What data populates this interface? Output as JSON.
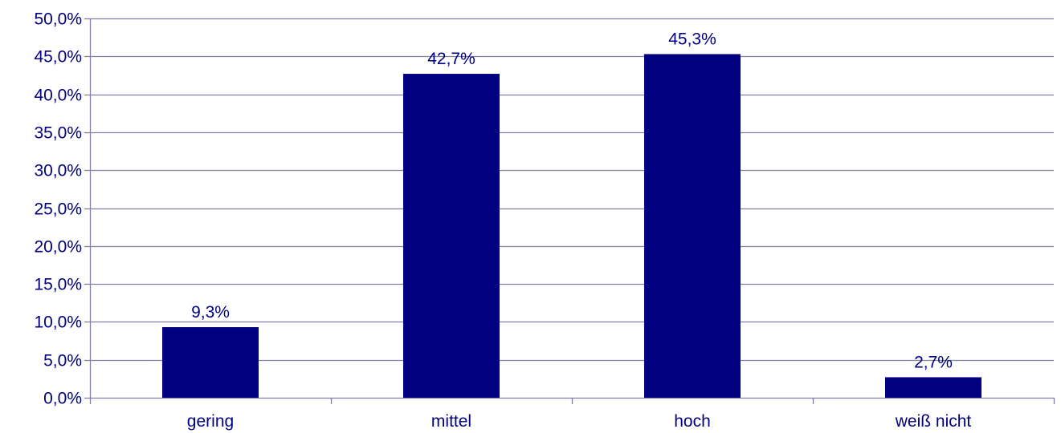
{
  "chart_data": {
    "type": "bar",
    "categories": [
      "gering",
      "mittel",
      "hoch",
      "weiß nicht"
    ],
    "values": [
      9.3,
      42.7,
      45.3,
      2.7
    ],
    "data_labels": [
      "9,3%",
      "42,7%",
      "45,3%",
      "2,7%"
    ],
    "title": "",
    "xlabel": "",
    "ylabel": "",
    "ylim": [
      0,
      50
    ],
    "yticks": [
      0,
      5,
      10,
      15,
      20,
      25,
      30,
      35,
      40,
      45,
      50
    ],
    "ytick_labels": [
      "0,0%",
      "5,0%",
      "10,0%",
      "15,0%",
      "20,0%",
      "25,0%",
      "30,0%",
      "35,0%",
      "40,0%",
      "45,0%",
      "50,0%"
    ],
    "grid": true,
    "legend": "none",
    "bar_color": "#000080",
    "grid_color": "#8080a0",
    "text_color": "#000080"
  }
}
